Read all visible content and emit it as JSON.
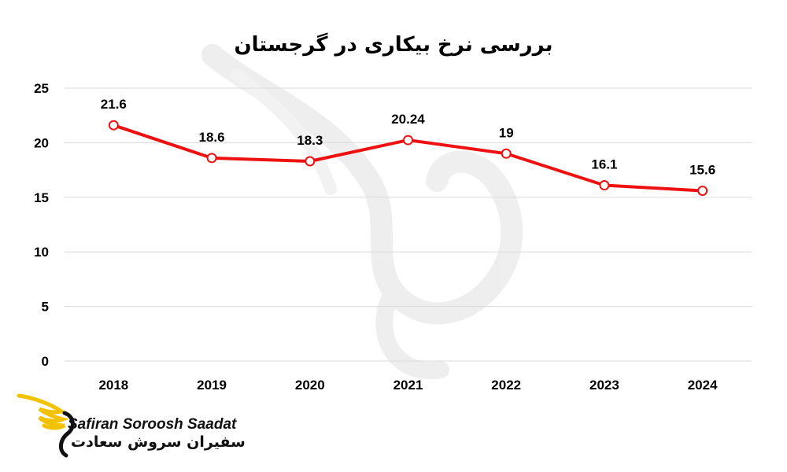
{
  "colors": {
    "line": "#ee1111",
    "grid": "#d9d9d9",
    "logo_wing": "#f2c200",
    "watermark": "#ececec"
  },
  "brand": {
    "name": "Safiran Soroosh Saadat",
    "name_fa": "سفیران سروش سعادت",
    "icon": "bird-wing-logo"
  },
  "chart_data": {
    "type": "line",
    "title": "بررسی نرخ بیکاری در گرجستان",
    "xlabel": "",
    "ylabel": "",
    "categories": [
      "2018",
      "2019",
      "2020",
      "2021",
      "2022",
      "2023",
      "2024"
    ],
    "values": [
      21.6,
      18.6,
      18.3,
      20.24,
      19,
      16.1,
      15.6
    ],
    "value_labels": [
      "21.6",
      "18.6",
      "18.3",
      "20.24",
      "19",
      "16.1",
      "15.6"
    ],
    "ylim": [
      0,
      25
    ],
    "yticks": [
      0,
      5,
      10,
      15,
      20,
      25
    ],
    "grid": true,
    "legend": "none",
    "markers": "hollow-circle"
  }
}
